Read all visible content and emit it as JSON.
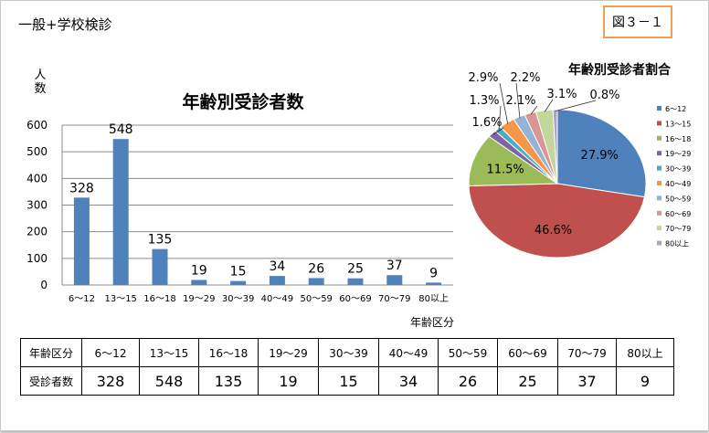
{
  "page": {
    "title": "一般+学校検診",
    "figure_label": "図３－１"
  },
  "chart_data": [
    {
      "type": "bar",
      "title": "年齢別受診者数",
      "ylabel": "人数",
      "xlabel": "年齢区分",
      "categories": [
        "6～12",
        "13～15",
        "16～18",
        "19～29",
        "30～39",
        "40～49",
        "50～59",
        "60～69",
        "70～79",
        "80以上"
      ],
      "values": [
        328,
        548,
        135,
        19,
        15,
        34,
        26,
        25,
        37,
        9
      ],
      "data_labels": [
        "328",
        "548",
        "135",
        "19",
        "15",
        "34",
        "26",
        "25",
        "37",
        "9"
      ],
      "yticks": [
        "0",
        "100",
        "200",
        "300",
        "400",
        "500",
        "600"
      ],
      "ylim": [
        0,
        600
      ],
      "grid": true,
      "bar_color": "#4f81bd"
    },
    {
      "type": "pie",
      "title": "年齢別受診者割合",
      "categories": [
        "6～12",
        "13～15",
        "16～18",
        "19～29",
        "30～39",
        "40～49",
        "50～59",
        "60～69",
        "70～79",
        "80以上"
      ],
      "values": [
        27.9,
        46.6,
        11.5,
        1.6,
        1.3,
        2.9,
        2.2,
        2.1,
        3.1,
        0.8
      ],
      "labels": [
        "27.9%",
        "46.6%",
        "11.5%",
        "1.6%",
        "1.3%",
        "2.9%",
        "2.2%",
        "2.1%",
        "3.1%",
        "0.8%"
      ],
      "colors": [
        "#4f81bd",
        "#c0504d",
        "#9bbb59",
        "#8064a2",
        "#4bacc6",
        "#f79646",
        "#95b3d7",
        "#d99694",
        "#c3d69b",
        "#b2a1c7"
      ],
      "legend_position": "right"
    }
  ],
  "table": {
    "header_label": "年齢区分",
    "row_label": "受診者数",
    "columns": [
      "6～12",
      "13～15",
      "16～18",
      "19～29",
      "30～39",
      "40～49",
      "50～59",
      "60～69",
      "70～79",
      "80以上"
    ],
    "values": [
      "328",
      "548",
      "135",
      "19",
      "15",
      "34",
      "26",
      "25",
      "37",
      "9"
    ]
  }
}
